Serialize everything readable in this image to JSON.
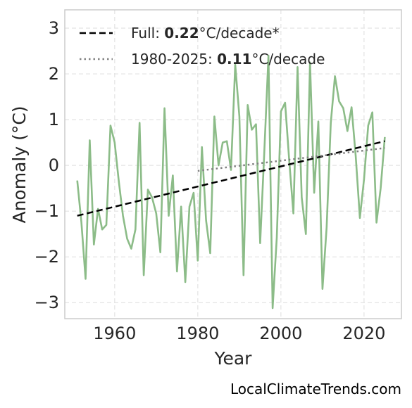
{
  "chart_data": {
    "type": "line",
    "title": "",
    "xlabel": "Year",
    "ylabel": "Anomaly (°C)",
    "xlim": [
      1948,
      2029
    ],
    "ylim": [
      -3.35,
      3.4
    ],
    "xticks": [
      1960,
      1980,
      2000,
      2020
    ],
    "yticks": [
      -3,
      -2,
      -1,
      0,
      1,
      2,
      3
    ],
    "grid": true,
    "legend_position": "top-left",
    "series": [
      {
        "color": "#8cbc88",
        "style": "solid",
        "x": [
          1951,
          1952,
          1953,
          1954,
          1955,
          1956,
          1957,
          1958,
          1959,
          1960,
          1961,
          1962,
          1963,
          1964,
          1965,
          1966,
          1967,
          1968,
          1969,
          1970,
          1971,
          1972,
          1973,
          1974,
          1975,
          1976,
          1977,
          1978,
          1979,
          1980,
          1981,
          1982,
          1983,
          1984,
          1985,
          1986,
          1987,
          1988,
          1989,
          1990,
          1991,
          1992,
          1993,
          1994,
          1995,
          1996,
          1997,
          1998,
          1999,
          2000,
          2001,
          2002,
          2003,
          2004,
          2005,
          2006,
          2007,
          2008,
          2009,
          2010,
          2011,
          2012,
          2013,
          2014,
          2015,
          2016,
          2017,
          2018,
          2019,
          2020,
          2021,
          2022,
          2023,
          2024,
          2025
        ],
        "y": [
          -0.33,
          -1.25,
          -2.48,
          0.55,
          -1.73,
          -0.95,
          -1.4,
          -1.3,
          0.87,
          0.5,
          -0.35,
          -1.1,
          -1.6,
          -1.82,
          -1.4,
          0.93,
          -2.4,
          -0.53,
          -0.7,
          -1.05,
          -1.9,
          1.25,
          -1.1,
          -0.22,
          -2.32,
          -0.9,
          -2.55,
          -0.9,
          -0.6,
          -2.08,
          0.4,
          -1.2,
          -1.92,
          1.07,
          0,
          0.5,
          0.53,
          -0.1,
          2.2,
          1.07,
          -2.4,
          1.32,
          0.78,
          0.9,
          -1.7,
          0.3,
          2.4,
          -3.12,
          -1.58,
          1.18,
          1.37,
          0.1,
          -1.05,
          2.15,
          -0.7,
          -1.5,
          2.25,
          -0.6,
          0.96,
          -2.7,
          -1.35,
          0.93,
          1.95,
          1.4,
          1.25,
          0.75,
          1.27,
          0.2,
          -1.15,
          -0.3,
          0.87,
          1.16,
          -1.25,
          -0.5,
          0.62
        ]
      },
      {
        "name": "Full: 0.22°C/decade*",
        "color": "#000000",
        "style": "dashed",
        "x": [
          1951,
          2025
        ],
        "y": [
          -1.1,
          0.53
        ]
      },
      {
        "name": "1980-2025: 0.11°C/decade",
        "color": "#808080",
        "style": "dotted",
        "x": [
          1980,
          2025
        ],
        "y": [
          -0.12,
          0.38
        ]
      }
    ],
    "legend": [
      {
        "prefix": "Full: ",
        "value": "0.22",
        "suffix": "°C/decade*"
      },
      {
        "prefix": "1980-2025: ",
        "value": "0.11",
        "suffix": "°C/decade"
      }
    ]
  },
  "watermark": "LocalClimateTrends.com"
}
